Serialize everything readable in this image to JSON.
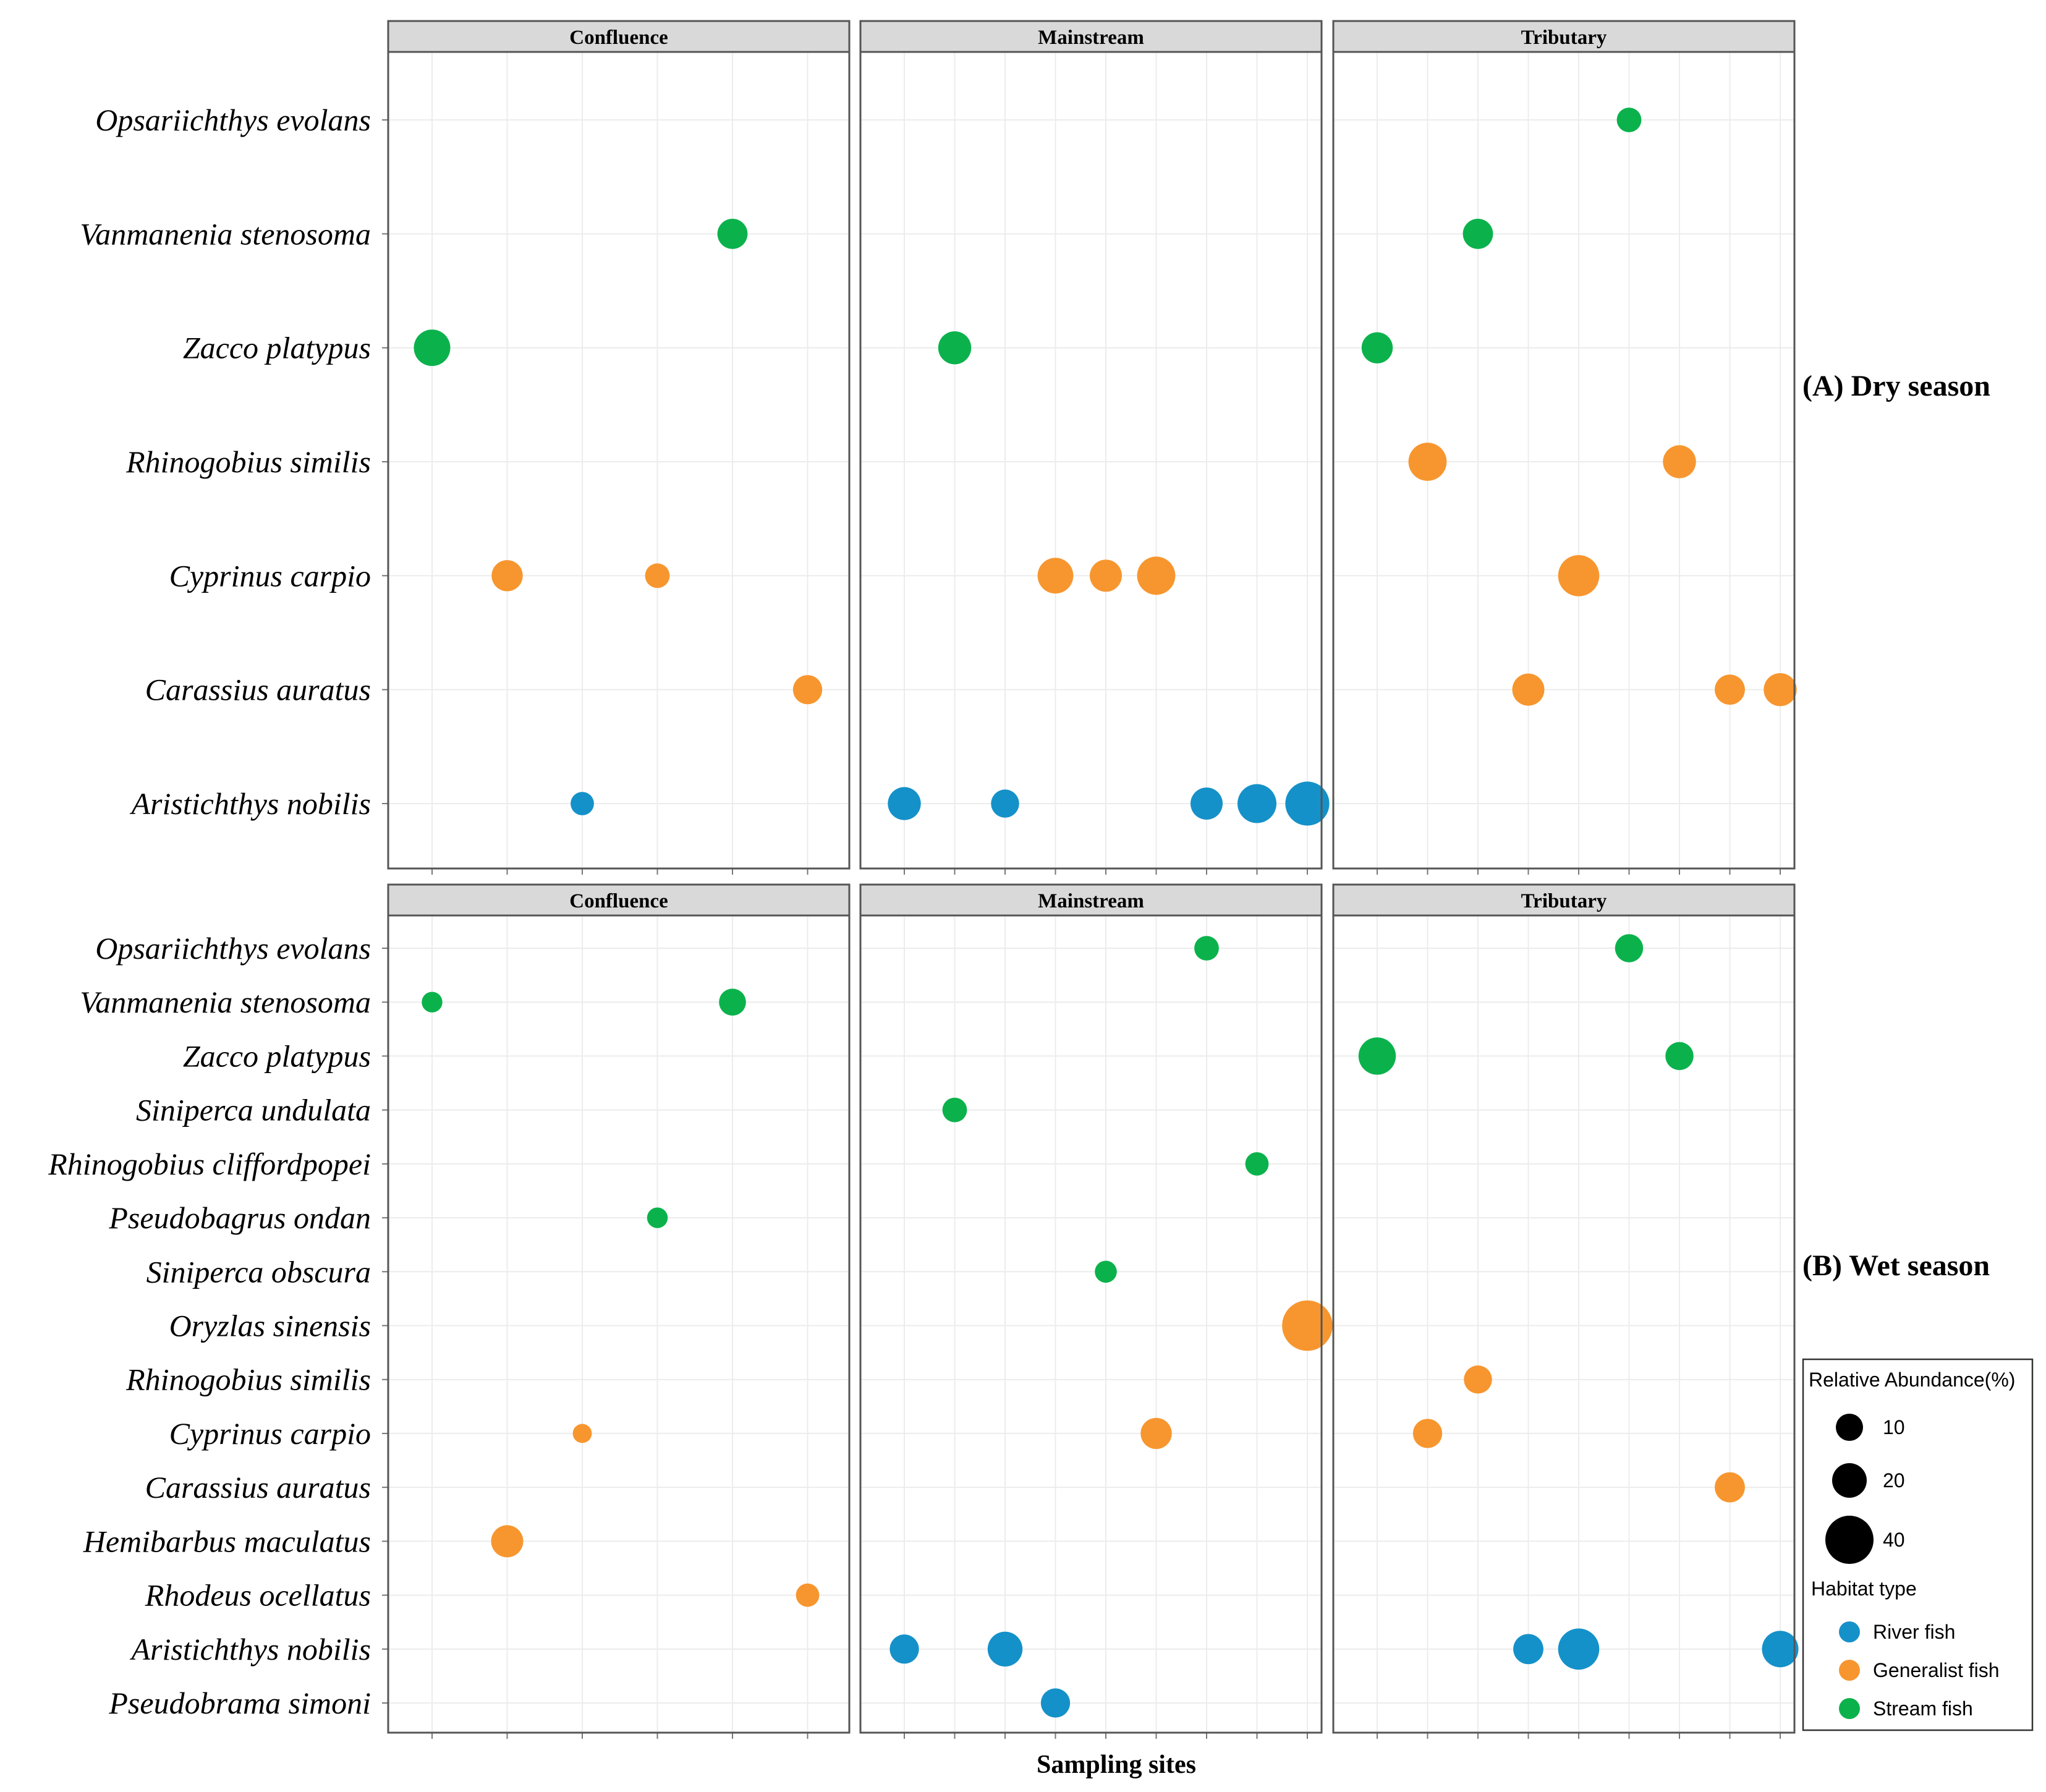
{
  "colors": {
    "River fish": "#1591c9",
    "Generalist fish": "#f7962f",
    "Stream fish": "#0bb24c",
    "strip": "#d9d9d9",
    "grid": "#ececec",
    "border": "#555555"
  },
  "xlabel": "Sampling sites",
  "legend": {
    "size_title": "Relative Abundance(%)",
    "size_values": [
      "10",
      "20",
      "40"
    ],
    "habitat_title": "Habitat type",
    "habitat_items": [
      "River fish",
      "Generalist fish",
      "Stream fish"
    ]
  },
  "chart_data": [
    {
      "type": "scatter",
      "label": "(A) Dry season",
      "facets": [
        "Confluence",
        "Mainstream",
        "Tributary"
      ],
      "species": [
        "Opsariichthys evolans",
        "Vanmanenia stenosoma",
        "Zacco platypus",
        "Rhinogobius similis",
        "Cyprinus carpio",
        "Carassius auratus",
        "Aristichthys nobilis"
      ],
      "points": [
        {
          "facet": "Confluence",
          "site": 1,
          "species": "Zacco platypus",
          "habitat": "Stream fish",
          "abundance": 22
        },
        {
          "facet": "Confluence",
          "site": 2,
          "species": "Cyprinus carpio",
          "habitat": "Generalist fish",
          "abundance": 16
        },
        {
          "facet": "Confluence",
          "site": 3,
          "species": "Aristichthys nobilis",
          "habitat": "River fish",
          "abundance": 9
        },
        {
          "facet": "Confluence",
          "site": 4,
          "species": "Cyprinus carpio",
          "habitat": "Generalist fish",
          "abundance": 10
        },
        {
          "facet": "Confluence",
          "site": 5,
          "species": "Vanmanenia stenosoma",
          "habitat": "Stream fish",
          "abundance": 15
        },
        {
          "facet": "Confluence",
          "site": 6,
          "species": "Carassius auratus",
          "habitat": "Generalist fish",
          "abundance": 14
        },
        {
          "facet": "Mainstream",
          "site": 1,
          "species": "Aristichthys nobilis",
          "habitat": "River fish",
          "abundance": 18
        },
        {
          "facet": "Mainstream",
          "site": 2,
          "species": "Zacco platypus",
          "habitat": "Stream fish",
          "abundance": 18
        },
        {
          "facet": "Mainstream",
          "site": 3,
          "species": "Aristichthys nobilis",
          "habitat": "River fish",
          "abundance": 13
        },
        {
          "facet": "Mainstream",
          "site": 4,
          "species": "Cyprinus carpio",
          "habitat": "Generalist fish",
          "abundance": 21
        },
        {
          "facet": "Mainstream",
          "site": 5,
          "species": "Cyprinus carpio",
          "habitat": "Generalist fish",
          "abundance": 17
        },
        {
          "facet": "Mainstream",
          "site": 6,
          "species": "Cyprinus carpio",
          "habitat": "Generalist fish",
          "abundance": 24
        },
        {
          "facet": "Mainstream",
          "site": 7,
          "species": "Aristichthys nobilis",
          "habitat": "River fish",
          "abundance": 17
        },
        {
          "facet": "Mainstream",
          "site": 8,
          "species": "Aristichthys nobilis",
          "habitat": "River fish",
          "abundance": 25
        },
        {
          "facet": "Mainstream",
          "site": 9,
          "species": "Aristichthys nobilis",
          "habitat": "River fish",
          "abundance": 32
        },
        {
          "facet": "Tributary",
          "site": 1,
          "species": "Zacco platypus",
          "habitat": "Stream fish",
          "abundance": 16
        },
        {
          "facet": "Tributary",
          "site": 2,
          "species": "Rhinogobius similis",
          "habitat": "Generalist fish",
          "abundance": 24
        },
        {
          "facet": "Tributary",
          "site": 3,
          "species": "Vanmanenia stenosoma",
          "habitat": "Stream fish",
          "abundance": 15
        },
        {
          "facet": "Tributary",
          "site": 4,
          "species": "Carassius auratus",
          "habitat": "Generalist fish",
          "abundance": 17
        },
        {
          "facet": "Tributary",
          "site": 5,
          "species": "Cyprinus carpio",
          "habitat": "Generalist fish",
          "abundance": 28
        },
        {
          "facet": "Tributary",
          "site": 6,
          "species": "Opsariichthys evolans",
          "habitat": "Stream fish",
          "abundance": 10
        },
        {
          "facet": "Tributary",
          "site": 7,
          "species": "Rhinogobius similis",
          "habitat": "Generalist fish",
          "abundance": 18
        },
        {
          "facet": "Tributary",
          "site": 8,
          "species": "Carassius auratus",
          "habitat": "Generalist fish",
          "abundance": 15
        },
        {
          "facet": "Tributary",
          "site": 9,
          "species": "Carassius auratus",
          "habitat": "Generalist fish",
          "abundance": 18
        }
      ]
    },
    {
      "type": "scatter",
      "label": "(B) Wet season",
      "facets": [
        "Confluence",
        "Mainstream",
        "Tributary"
      ],
      "species": [
        "Opsariichthys evolans",
        "Vanmanenia stenosoma",
        "Zacco platypus",
        "Siniperca undulata",
        "Rhinogobius cliffordpopei",
        "Pseudobagrus ondan",
        "Siniperca obscura",
        "Oryzlas sinensis",
        "Rhinogobius similis",
        "Cyprinus carpio",
        "Carassius auratus",
        "Hemibarbus maculatus",
        "Rhodeus ocellatus",
        "Aristichthys nobilis",
        "Pseudobrama simoni"
      ],
      "points": [
        {
          "facet": "Confluence",
          "site": 1,
          "species": "Vanmanenia stenosoma",
          "habitat": "Stream fish",
          "abundance": 7
        },
        {
          "facet": "Confluence",
          "site": 2,
          "species": "Hemibarbus maculatus",
          "habitat": "Generalist fish",
          "abundance": 17
        },
        {
          "facet": "Confluence",
          "site": 3,
          "species": "Cyprinus carpio",
          "habitat": "Generalist fish",
          "abundance": 6
        },
        {
          "facet": "Confluence",
          "site": 4,
          "species": "Pseudobagrus ondan",
          "habitat": "Stream fish",
          "abundance": 7
        },
        {
          "facet": "Confluence",
          "site": 5,
          "species": "Vanmanenia stenosoma",
          "habitat": "Stream fish",
          "abundance": 12
        },
        {
          "facet": "Confluence",
          "site": 6,
          "species": "Rhodeus ocellatus",
          "habitat": "Generalist fish",
          "abundance": 9
        },
        {
          "facet": "Mainstream",
          "site": 1,
          "species": "Aristichthys nobilis",
          "habitat": "River fish",
          "abundance": 14
        },
        {
          "facet": "Mainstream",
          "site": 2,
          "species": "Siniperca undulata",
          "habitat": "Stream fish",
          "abundance": 10
        },
        {
          "facet": "Mainstream",
          "site": 3,
          "species": "Aristichthys nobilis",
          "habitat": "River fish",
          "abundance": 20
        },
        {
          "facet": "Mainstream",
          "site": 4,
          "species": "Pseudobrama simoni",
          "habitat": "River fish",
          "abundance": 14
        },
        {
          "facet": "Mainstream",
          "site": 5,
          "species": "Siniperca obscura",
          "habitat": "Stream fish",
          "abundance": 8
        },
        {
          "facet": "Mainstream",
          "site": 6,
          "species": "Cyprinus carpio",
          "habitat": "Generalist fish",
          "abundance": 16
        },
        {
          "facet": "Mainstream",
          "site": 7,
          "species": "Opsariichthys evolans",
          "habitat": "Stream fish",
          "abundance": 10
        },
        {
          "facet": "Mainstream",
          "site": 8,
          "species": "Rhinogobius cliffordpopei",
          "habitat": "Stream fish",
          "abundance": 9
        },
        {
          "facet": "Mainstream",
          "site": 9,
          "species": "Oryzlas sinensis",
          "habitat": "Generalist fish",
          "abundance": 42
        },
        {
          "facet": "Tributary",
          "site": 1,
          "species": "Zacco platypus",
          "habitat": "Stream fish",
          "abundance": 23
        },
        {
          "facet": "Tributary",
          "site": 2,
          "species": "Cyprinus carpio",
          "habitat": "Generalist fish",
          "abundance": 14
        },
        {
          "facet": "Tributary",
          "site": 3,
          "species": "Rhinogobius similis",
          "habitat": "Generalist fish",
          "abundance": 13
        },
        {
          "facet": "Tributary",
          "site": 4,
          "species": "Aristichthys nobilis",
          "habitat": "River fish",
          "abundance": 15
        },
        {
          "facet": "Tributary",
          "site": 5,
          "species": "Aristichthys nobilis",
          "habitat": "River fish",
          "abundance": 28
        },
        {
          "facet": "Tributary",
          "site": 6,
          "species": "Opsariichthys evolans",
          "habitat": "Stream fish",
          "abundance": 13
        },
        {
          "facet": "Tributary",
          "site": 7,
          "species": "Zacco platypus",
          "habitat": "Stream fish",
          "abundance": 13
        },
        {
          "facet": "Tributary",
          "site": 8,
          "species": "Carassius auratus",
          "habitat": "Generalist fish",
          "abundance": 15
        },
        {
          "facet": "Tributary",
          "site": 9,
          "species": "Aristichthys nobilis",
          "habitat": "River fish",
          "abundance": 22
        }
      ]
    }
  ]
}
